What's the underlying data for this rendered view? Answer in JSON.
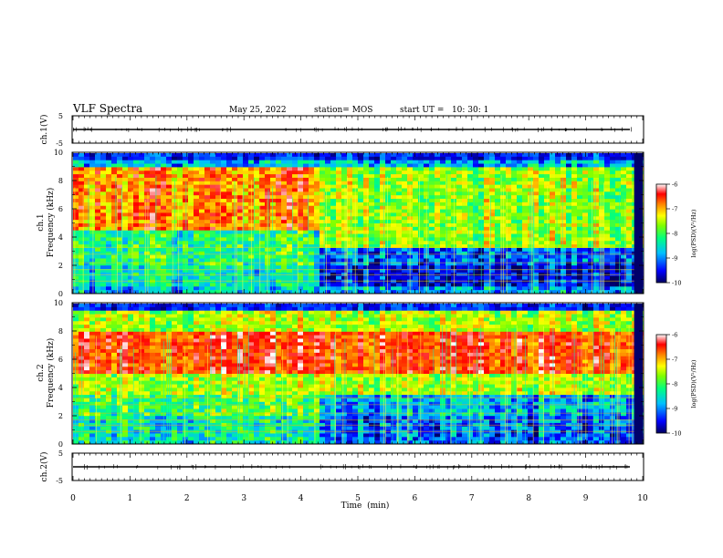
{
  "header": {
    "title": "VLF Spectra",
    "date": "May 25, 2022",
    "station": "station= MOS",
    "start_ut": "start UT =   10: 30: 1"
  },
  "chart_data": [
    {
      "type": "line",
      "panel": "ch1-voltage",
      "ylabel": "ch.1(V)",
      "ylim": [
        -5,
        5
      ],
      "y_ticks": [
        "5",
        "-5"
      ],
      "xlim": [
        0,
        10
      ],
      "baseline_value": 0
    },
    {
      "type": "heatmap",
      "panel": "ch1-spectrogram",
      "ylabel_line1": "ch.1",
      "ylabel_line2": "Frequency (kHz)",
      "ylim": [
        0,
        10
      ],
      "y_ticks": [
        "0",
        "2",
        "4",
        "6",
        "8",
        "10"
      ],
      "xlim": [
        0,
        10
      ],
      "color_range": [
        -10,
        -6
      ],
      "colorbar_label": "log(PSD)(V²/Hz)",
      "colorbar_ticks": [
        "-6",
        "-7",
        "-8",
        "-9",
        "-10"
      ],
      "transition_min": 4.3,
      "active_band_khz_before": [
        4.5,
        9
      ],
      "active_band_khz_after": [
        3,
        9
      ]
    },
    {
      "type": "heatmap",
      "panel": "ch2-spectrogram",
      "ylabel_line1": "ch.2",
      "ylabel_line2": "Frequency (kHz)",
      "ylim": [
        0,
        10
      ],
      "y_ticks": [
        "0",
        "2",
        "4",
        "6",
        "8",
        "10"
      ],
      "xlim": [
        0,
        10
      ],
      "color_range": [
        -10,
        -6
      ],
      "colorbar_label": "log(PSD)(V²/Hz)",
      "colorbar_ticks": [
        "-6",
        "-7",
        "-8",
        "-9",
        "-10"
      ],
      "transition_min": 4.3,
      "active_band_khz": [
        5,
        8
      ]
    },
    {
      "type": "line",
      "panel": "ch2-voltage",
      "ylabel": "ch.2(V)",
      "ylim": [
        -5,
        5
      ],
      "y_ticks": [
        "5",
        "-5"
      ],
      "xlim": [
        0,
        10
      ],
      "baseline_value": 0
    }
  ],
  "x_axis": {
    "label": "Time  (min)",
    "ticks": [
      "0",
      "1",
      "2",
      "3",
      "4",
      "5",
      "6",
      "7",
      "8",
      "9",
      "10"
    ]
  },
  "colors": {
    "background": "#ffffff",
    "axes": "#000000",
    "colormap": [
      "#00007f",
      "#0000ff",
      "#00ffff",
      "#00ff00",
      "#ffff00",
      "#ff0000",
      "#ffffff"
    ]
  }
}
